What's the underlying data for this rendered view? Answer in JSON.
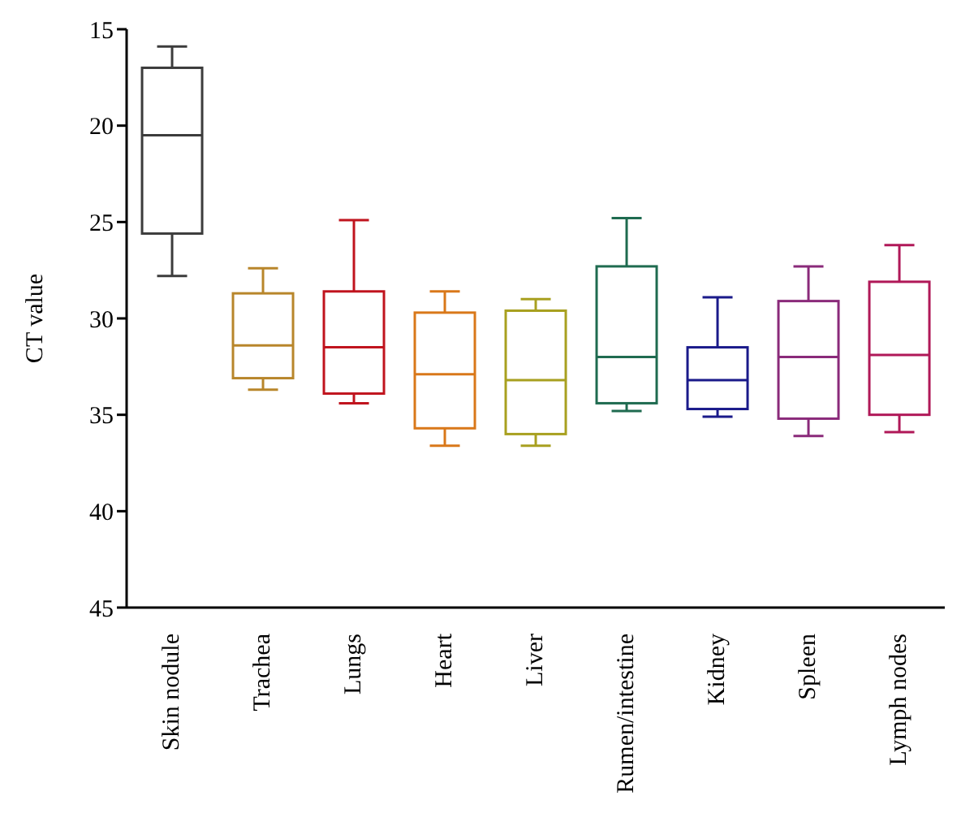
{
  "chart_data": {
    "type": "box",
    "ylabel": "CT value",
    "categories": [
      "Skin nodule",
      "Trachea",
      "Lungs",
      "Heart",
      "Liver",
      "Rumen/intestine",
      "Kidney",
      "Spleen",
      "Lymph nodes"
    ],
    "colors": [
      "#3c3c3c",
      "#b8862b",
      "#c0141e",
      "#d9781a",
      "#a8a020",
      "#1f6b50",
      "#1a1a8a",
      "#8a2a7a",
      "#b01858"
    ],
    "boxes": [
      {
        "low": 15.9,
        "q1": 17.0,
        "median": 20.5,
        "q3": 25.6,
        "high": 27.8
      },
      {
        "low": 27.4,
        "q1": 28.7,
        "median": 31.4,
        "q3": 33.1,
        "high": 33.7
      },
      {
        "low": 24.9,
        "q1": 28.6,
        "median": 31.5,
        "q3": 33.9,
        "high": 34.4
      },
      {
        "low": 28.6,
        "q1": 29.7,
        "median": 32.9,
        "q3": 35.7,
        "high": 36.6
      },
      {
        "low": 29.0,
        "q1": 29.6,
        "median": 33.2,
        "q3": 36.0,
        "high": 36.6
      },
      {
        "low": 24.8,
        "q1": 27.3,
        "median": 32.0,
        "q3": 34.4,
        "high": 34.8
      },
      {
        "low": 28.9,
        "q1": 31.5,
        "median": 33.2,
        "q3": 34.7,
        "high": 35.1
      },
      {
        "low": 27.3,
        "q1": 29.1,
        "median": 32.0,
        "q3": 35.2,
        "high": 36.1
      },
      {
        "low": 26.2,
        "q1": 28.1,
        "median": 31.9,
        "q3": 35.0,
        "high": 35.9
      }
    ],
    "ylim": [
      45,
      15
    ],
    "yticks": [
      15,
      20,
      25,
      30,
      35,
      40,
      45
    ],
    "grid": false,
    "legend": false
  }
}
